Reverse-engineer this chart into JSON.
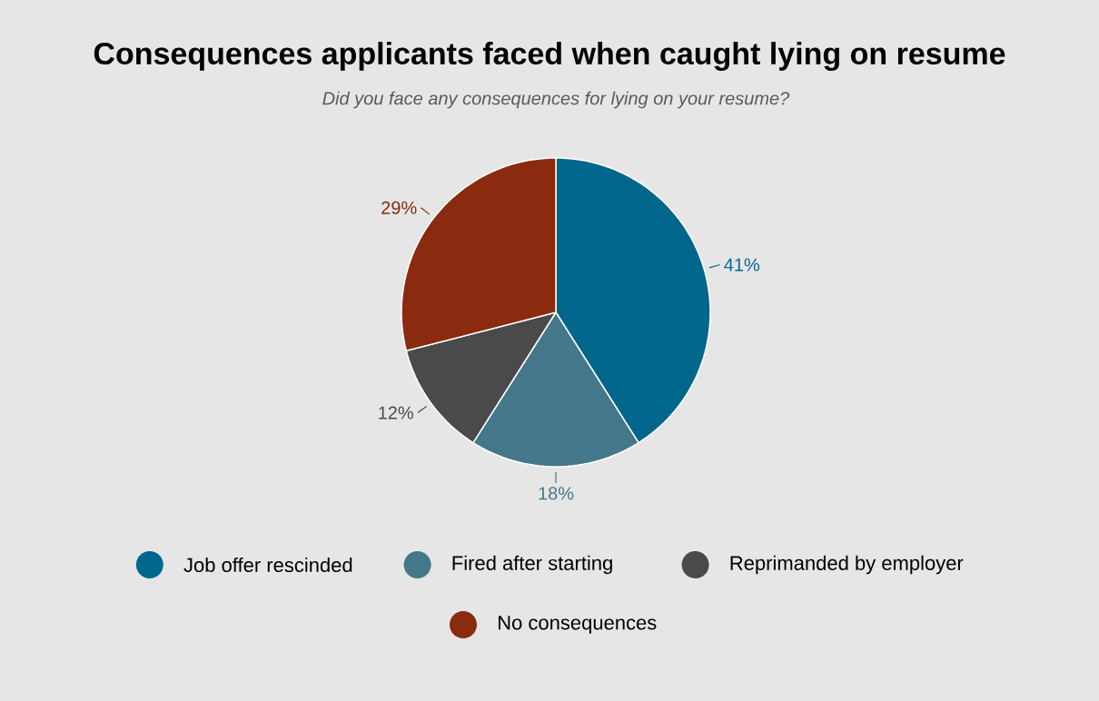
{
  "chart_data": {
    "type": "pie",
    "title": "Consequences applicants faced when caught lying on resume",
    "subtitle": "Did you face any consequences for lying on your resume?",
    "categories": [
      "Job offer rescinded",
      "Fired after starting",
      "Reprimanded by employer",
      "No consequences"
    ],
    "values": [
      41,
      18,
      12,
      29
    ],
    "colors": [
      "#00668c",
      "#44778a",
      "#4a4a4a",
      "#8a2a0e"
    ],
    "value_labels": [
      "41%",
      "18%",
      "12%",
      "29%"
    ],
    "legend": "bottom"
  }
}
